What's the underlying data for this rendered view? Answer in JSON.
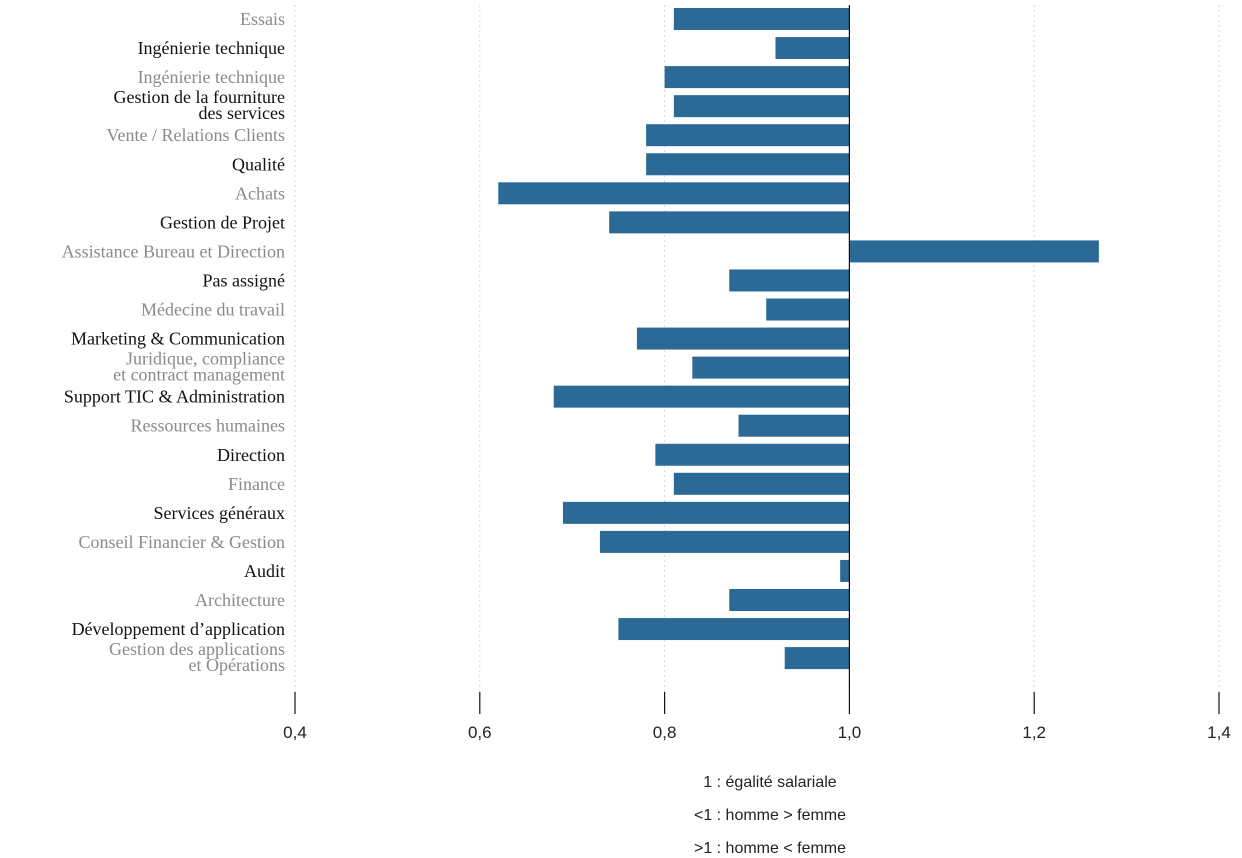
{
  "chart_data": {
    "type": "bar",
    "orientation": "horizontal",
    "categories": [
      "Essais",
      "Ingénierie technique",
      "Ingénierie technique",
      [
        "Gestion de la fourniture",
        "des services"
      ],
      "Vente / Relations Clients",
      "Qualité",
      "Achats",
      "Gestion  de Projet",
      "Assistance Bureau et Direction",
      "Pas assigné",
      "Médecine du travail",
      "Marketing & Communication",
      [
        "Juridique, compliance",
        "et contract management"
      ],
      "Support TIC & Administration",
      "Ressources humaines",
      "Direction",
      "Finance",
      "Services généraux",
      "Conseil Financier & Gestion",
      "Audit",
      "Architecture",
      "Développement d’application",
      [
        "Gestion des applications",
        "et Opérations"
      ]
    ],
    "values": [
      0.81,
      0.92,
      0.8,
      0.81,
      0.78,
      0.78,
      0.62,
      0.74,
      1.27,
      0.87,
      0.91,
      0.77,
      0.83,
      0.68,
      0.88,
      0.79,
      0.81,
      0.69,
      0.73,
      0.99,
      0.87,
      0.75,
      0.93
    ],
    "baseline": 1.0,
    "xlim": [
      0.4,
      1.4
    ],
    "xticks": [
      "0,4",
      "0,6",
      "0,8",
      "1,0",
      "1,2",
      "1,4"
    ],
    "xtick_values": [
      0.4,
      0.6,
      0.8,
      1.0,
      1.2,
      1.4
    ],
    "grid": true,
    "bar_color": "#2b6a96",
    "label_colors": [
      "#8a8a8a",
      "#111111"
    ]
  },
  "notes": [
    "1 : égalité salariale",
    "<1 : homme > femme",
    ">1 : homme < femme"
  ]
}
